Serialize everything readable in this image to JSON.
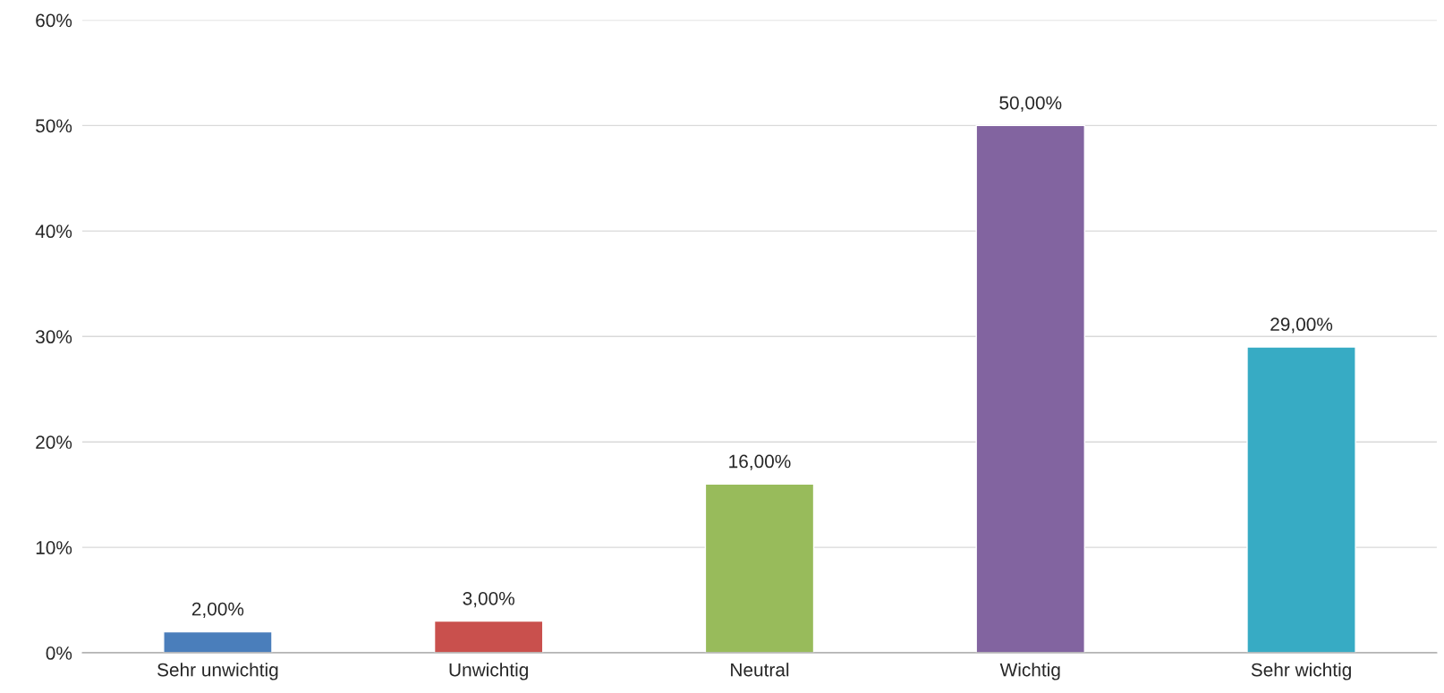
{
  "chart_data": {
    "type": "bar",
    "categories": [
      "Sehr unwichtig",
      "Unwichtig",
      "Neutral",
      "Wichtig",
      "Sehr wichtig"
    ],
    "values": [
      2,
      3,
      16,
      50,
      29
    ],
    "colors": [
      "#4a7ebb",
      "#c9504d",
      "#98bb5b",
      "#8264a0",
      "#37abc4"
    ],
    "value_labels": [
      "2,00%",
      "3,00%",
      "16,00%",
      "50,00%",
      "29,00%"
    ],
    "ylim": [
      0,
      60
    ],
    "yticks": [
      {
        "value": 0,
        "label": "0%"
      },
      {
        "value": 10,
        "label": "10%"
      },
      {
        "value": 20,
        "label": "20%"
      },
      {
        "value": 30,
        "label": "30%"
      },
      {
        "value": 40,
        "label": "40%"
      },
      {
        "value": 50,
        "label": "50%"
      },
      {
        "value": 60,
        "label": "60%"
      }
    ],
    "grid": "y",
    "legend": false
  }
}
